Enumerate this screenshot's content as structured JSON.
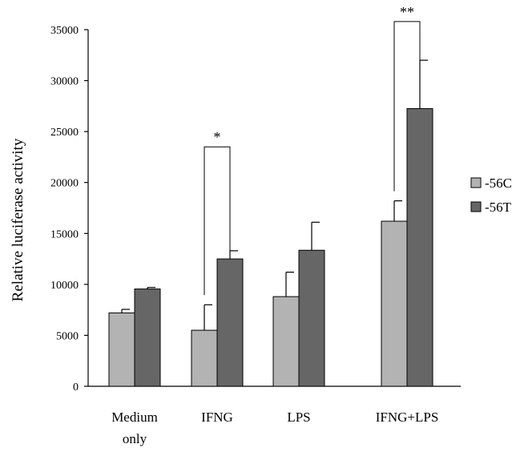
{
  "chart_data": {
    "type": "bar",
    "title": "",
    "xlabel": "",
    "ylabel": "Relative luciferase activity",
    "ylim": [
      0,
      35000
    ],
    "yticks": [
      0,
      5000,
      10000,
      15000,
      20000,
      25000,
      30000,
      35000
    ],
    "categories": [
      [
        "Medium",
        "only"
      ],
      [
        "IFNG"
      ],
      [
        "LPS"
      ],
      [
        "IFNG+LPS"
      ]
    ],
    "series": [
      {
        "name": "-56C",
        "color": "#b3b3b3",
        "values": [
          7200,
          5500,
          8800,
          16200
        ],
        "errors": [
          350,
          2500,
          2400,
          2000
        ]
      },
      {
        "name": "-56T",
        "color": "#666666",
        "values": [
          9550,
          12500,
          13350,
          27250
        ],
        "errors": [
          150,
          800,
          2750,
          4750
        ]
      }
    ],
    "significance": [
      {
        "category_index": 1,
        "label": "*",
        "y": 23500
      },
      {
        "category_index": 3,
        "label": "**",
        "y": 35800
      }
    ],
    "legend_position": "right",
    "grid": false
  }
}
